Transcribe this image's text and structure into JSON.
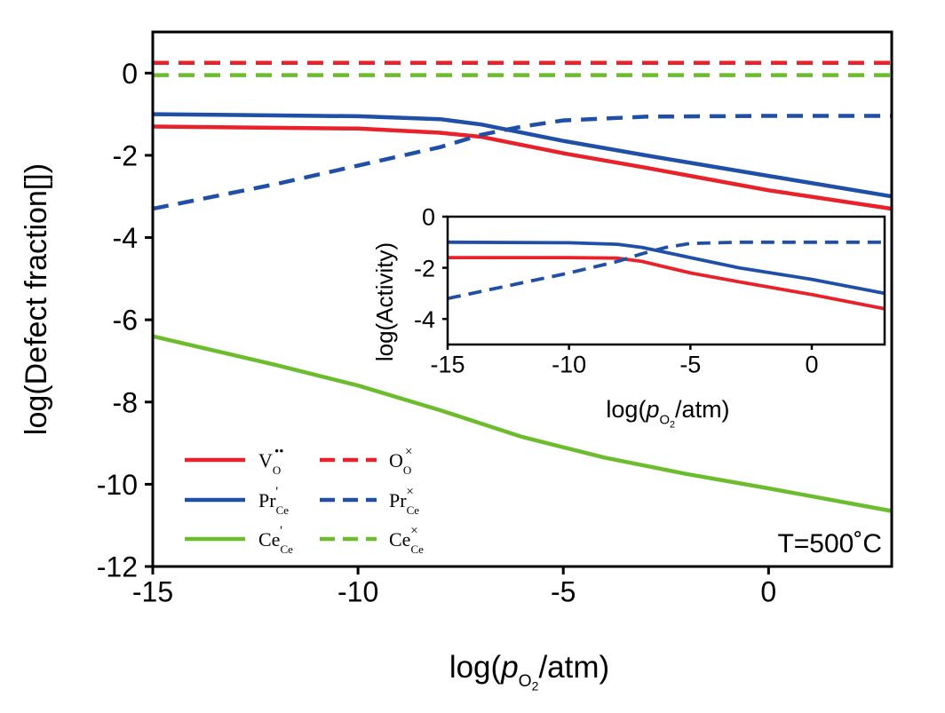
{
  "chart_data": [
    {
      "type": "line",
      "role": "main",
      "xlabel_prefix": "log(",
      "xlabel_var": "p",
      "xlabel_sub": "O",
      "xlabel_subsub": "2",
      "xlabel_suffix": "/atm)",
      "ylabel": "log(Defect fraction[])",
      "xlim": [
        -15,
        3
      ],
      "ylim": [
        -12,
        1
      ],
      "xticks": [
        -15,
        -10,
        -5,
        0
      ],
      "yticks": [
        0,
        -2,
        -4,
        -6,
        -8,
        -10,
        -12
      ],
      "annotation": "T=500˚C",
      "colors": {
        "red": "#e8212a",
        "blue": "#1f4fa6",
        "green": "#6cbd2e"
      },
      "series": [
        {
          "name": "V_O••",
          "color": "#e8212a",
          "dash": false,
          "points": [
            [
              -15,
              -1.3
            ],
            [
              -10,
              -1.35
            ],
            [
              -8,
              -1.45
            ],
            [
              -7,
              -1.55
            ],
            [
              -5,
              -1.95
            ],
            [
              -3,
              -2.3
            ],
            [
              0,
              -2.85
            ],
            [
              3,
              -3.3
            ]
          ]
        },
        {
          "name": "Pr_Ce'",
          "color": "#1f4fa6",
          "dash": false,
          "points": [
            [
              -15,
              -1.0
            ],
            [
              -10,
              -1.05
            ],
            [
              -8,
              -1.12
            ],
            [
              -7,
              -1.25
            ],
            [
              -5,
              -1.65
            ],
            [
              -3,
              -2.0
            ],
            [
              0,
              -2.5
            ],
            [
              3,
              -3.0
            ]
          ]
        },
        {
          "name": "Ce_Ce'",
          "color": "#6cbd2e",
          "dash": false,
          "points": [
            [
              -15,
              -6.4
            ],
            [
              -12,
              -7.1
            ],
            [
              -10,
              -7.6
            ],
            [
              -8,
              -8.2
            ],
            [
              -6,
              -8.85
            ],
            [
              -4,
              -9.35
            ],
            [
              -2,
              -9.75
            ],
            [
              0,
              -10.1
            ],
            [
              3,
              -10.65
            ]
          ]
        },
        {
          "name": "O_O×",
          "color": "#e8212a",
          "dash": true,
          "points": [
            [
              -15,
              0.25
            ],
            [
              3,
              0.25
            ]
          ]
        },
        {
          "name": "Pr_Ce×",
          "color": "#1f4fa6",
          "dash": true,
          "points": [
            [
              -15,
              -3.3
            ],
            [
              -12,
              -2.7
            ],
            [
              -10,
              -2.25
            ],
            [
              -8,
              -1.8
            ],
            [
              -7,
              -1.5
            ],
            [
              -6,
              -1.3
            ],
            [
              -5,
              -1.15
            ],
            [
              -3,
              -1.06
            ],
            [
              0,
              -1.04
            ],
            [
              3,
              -1.04
            ]
          ]
        },
        {
          "name": "Ce_Ce×",
          "color": "#6cbd2e",
          "dash": true,
          "points": [
            [
              -15,
              -0.05
            ],
            [
              3,
              -0.05
            ]
          ]
        }
      ],
      "legend": [
        {
          "main": "V",
          "sub": "O",
          "sup": "••",
          "color": "#e8212a",
          "dash": false
        },
        {
          "main": "O",
          "sub": "O",
          "sup": "×",
          "color": "#e8212a",
          "dash": true
        },
        {
          "main": "Pr",
          "sub": "Ce",
          "sup": "'",
          "color": "#1f4fa6",
          "dash": false
        },
        {
          "main": "Pr",
          "sub": "Ce",
          "sup": "×",
          "color": "#1f4fa6",
          "dash": true
        },
        {
          "main": "Ce",
          "sub": "Ce",
          "sup": "'",
          "color": "#6cbd2e",
          "dash": false
        },
        {
          "main": "Ce",
          "sub": "Ce",
          "sup": "×",
          "color": "#6cbd2e",
          "dash": true
        }
      ]
    },
    {
      "type": "line",
      "role": "inset",
      "xlabel_prefix": "log(",
      "xlabel_var": "p",
      "xlabel_sub": "O",
      "xlabel_subsub": "2",
      "xlabel_suffix": "/atm)",
      "ylabel": "log(Activity)",
      "xlim": [
        -15,
        3
      ],
      "ylim": [
        -5,
        0
      ],
      "xticks": [
        -15,
        -10,
        -5,
        0
      ],
      "yticks": [
        0,
        -2,
        -4
      ],
      "series": [
        {
          "name": "V_O••",
          "color": "#e8212a",
          "dash": false,
          "points": [
            [
              -15,
              -1.6
            ],
            [
              -10,
              -1.6
            ],
            [
              -8,
              -1.62
            ],
            [
              -7,
              -1.75
            ],
            [
              -5,
              -2.2
            ],
            [
              -3,
              -2.55
            ],
            [
              0,
              -3.05
            ],
            [
              3,
              -3.6
            ]
          ]
        },
        {
          "name": "Pr_Ce'",
          "color": "#1f4fa6",
          "dash": false,
          "points": [
            [
              -15,
              -1.0
            ],
            [
              -10,
              -1.02
            ],
            [
              -8,
              -1.08
            ],
            [
              -7,
              -1.2
            ],
            [
              -5,
              -1.6
            ],
            [
              -3,
              -2.0
            ],
            [
              0,
              -2.45
            ],
            [
              3,
              -3.0
            ]
          ]
        },
        {
          "name": "Pr_Ce×",
          "color": "#1f4fa6",
          "dash": true,
          "points": [
            [
              -15,
              -3.2
            ],
            [
              -12,
              -2.6
            ],
            [
              -10,
              -2.2
            ],
            [
              -8,
              -1.75
            ],
            [
              -7,
              -1.45
            ],
            [
              -6,
              -1.2
            ],
            [
              -5,
              -1.05
            ],
            [
              -3,
              -1.0
            ],
            [
              0,
              -1.0
            ],
            [
              3,
              -1.0
            ]
          ]
        }
      ]
    }
  ]
}
